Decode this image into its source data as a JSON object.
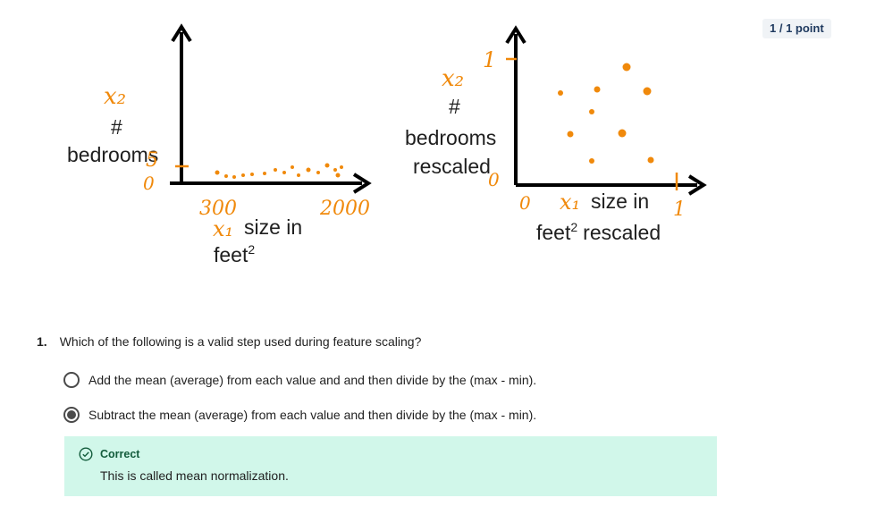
{
  "points_badge": "1 / 1 point",
  "left_plot": {
    "y_var": "x₂",
    "y_hash": "#",
    "y_label": "bedrooms",
    "y_tick_top": "5",
    "y_tick_bottom": "0",
    "x_tick_min": "300",
    "x_tick_max": "2000",
    "x_var": "x₁",
    "x_label_line1": "size in",
    "x_label_line2": "feet",
    "x_label_sup": "2"
  },
  "right_plot": {
    "y_var": "x₂",
    "y_hash": "#",
    "y_label_line1": "bedrooms",
    "y_label_line2": "rescaled",
    "y_tick_top": "1",
    "y_tick_bottom": "0",
    "x_tick_min": "0",
    "x_tick_max": "1",
    "x_var": "x₁",
    "x_label_line1": "size in",
    "x_label_line2": "feet",
    "x_label_sup": "2",
    "x_label_line2_suffix": "rescaled"
  },
  "colors": {
    "accent": "#f0890b",
    "correct_bg": "#d1f7ea",
    "correct_text": "#135c3c"
  },
  "question": {
    "number": "1.",
    "text": "Which of the following is a valid step used during feature scaling?",
    "options": [
      {
        "text": "Add the mean (average) from each value and and then divide by the (max - min).",
        "selected": false
      },
      {
        "text": "Subtract the mean (average) from each value and then divide by the (max - min).",
        "selected": true
      }
    ]
  },
  "feedback": {
    "icon": "check-circle-icon",
    "title": "Correct",
    "text": "This is called mean normalization."
  }
}
